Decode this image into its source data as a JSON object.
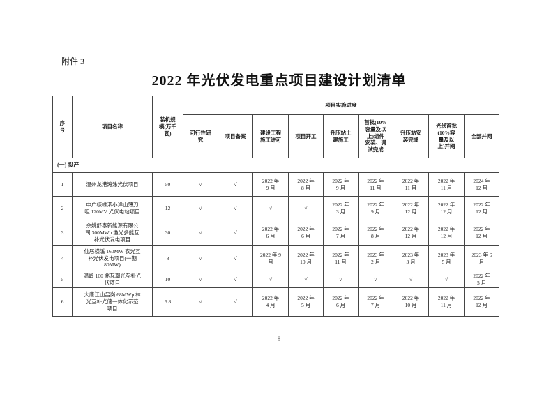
{
  "page": {
    "attachment_label": "附件 3",
    "title": "2022 年光伏发电重点项目建设计划清单",
    "page_number": "8"
  },
  "table": {
    "columns": {
      "index": "序\n号",
      "name": "项目名称",
      "capacity": "装机规\n模(万千\n瓦)",
      "progress_group": "项目实施进度",
      "progress": [
        "可行性研\n究",
        "项目备案",
        "建设工程\n施工许可",
        "项目开工",
        "升压站土\n建施工",
        "首批(10%\n容量及以\n上)组件\n安装、调\n试完成",
        "升压站安\n装完成",
        "光伏首批\n(10%容\n量及以\n上)并网",
        "全部并网"
      ]
    },
    "section": "(一) 投产",
    "rows": [
      {
        "no": "1",
        "name": "温州龙港滩涂光伏项目",
        "capacity": "50",
        "cells": [
          "√",
          "√",
          "2022 年\n9 月",
          "2022 年\n8 月",
          "2022 年\n9 月",
          "2022 年\n11 月",
          "2022 年\n11 月",
          "2022 年\n11 月",
          "2024 年\n12 月"
        ]
      },
      {
        "no": "2",
        "name": "中广核嵊泗小洋山薄刀\n咀 120MV 光伏电站项目",
        "capacity": "12",
        "cells": [
          "√",
          "√",
          "√",
          "√",
          "2022 年\n3 月",
          "2022 年\n9 月",
          "2022 年\n12 月",
          "2022 年\n12 月",
          "2022 年\n12 月"
        ]
      },
      {
        "no": "3",
        "name": "余姚舒泰新能源有限公\n司 300MWp 渔光多能互\n补光伏发电项目",
        "capacity": "30",
        "cells": [
          "√",
          "√",
          "2022 年\n6 月",
          "2022 年\n6 月",
          "2022 年\n7 月",
          "2022 年\n8 月",
          "2022 年\n12 月",
          "2022 年\n12 月",
          "2022 年\n12 月"
        ]
      },
      {
        "no": "4",
        "name": "仙居横溪 160MW 农光互\n补光伏发电项目(一期\n80MW)",
        "capacity": "8",
        "cells": [
          "√",
          "√",
          "2022 年 9\n月",
          "2022 年\n10 月",
          "2022 年\n11 月",
          "2023 年\n2 月",
          "2023 年\n3 月",
          "2023 年\n5 月",
          "2023 年 6\n月"
        ]
      },
      {
        "no": "5",
        "name": "温岭 100 兆瓦潮光互补光\n伏项目",
        "capacity": "10",
        "cells": [
          "√",
          "√",
          "√",
          "√",
          "√",
          "√",
          "√",
          "√",
          "2022 年\n5 月"
        ]
      },
      {
        "no": "6",
        "name": "大唐江山吕岗 68MWp 林\n光互补光储一体化示范\n项目",
        "capacity": "6.8",
        "cells": [
          "√",
          "√",
          "2022 年\n4 月",
          "2022 年\n5 月",
          "2022 年\n6 月",
          "2022 年\n7 月",
          "2022 年\n10 月",
          "2022 年\n11 月",
          "2022 年\n12 月"
        ]
      }
    ]
  }
}
